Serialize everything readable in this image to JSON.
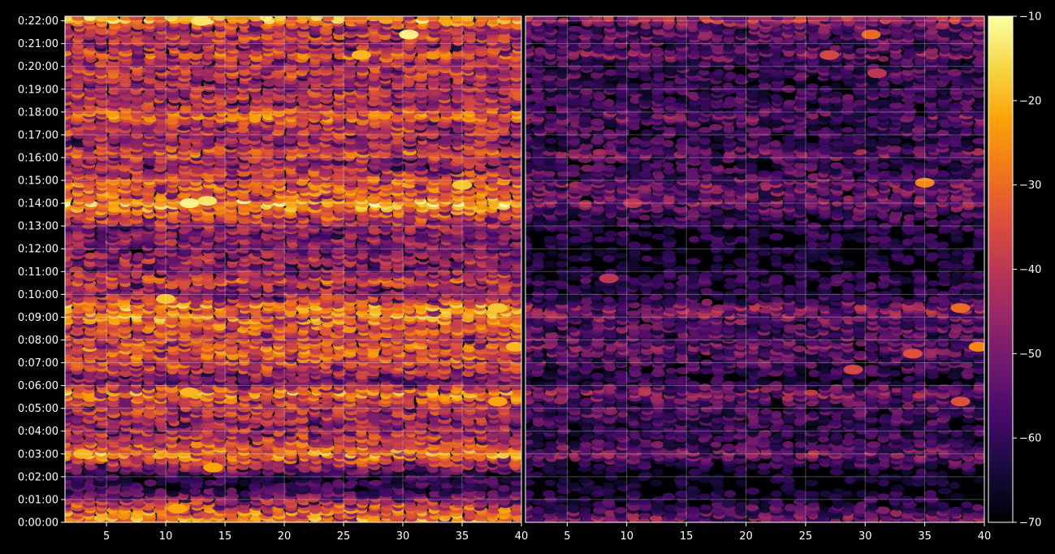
{
  "chart_data": {
    "type": "heatmap",
    "title": "",
    "colormap": "inferno",
    "background": "#000000",
    "grid": true,
    "panels": [
      {
        "name": "left",
        "x_ticks": [
          "5",
          "10",
          "15",
          "20",
          "25",
          "30",
          "35",
          "40"
        ],
        "x_tick_values": [
          5,
          10,
          15,
          20,
          25,
          30,
          35,
          40
        ],
        "x_range": [
          1.5,
          40
        ]
      },
      {
        "name": "right",
        "x_ticks": [
          "5",
          "10",
          "15",
          "20",
          "25",
          "30",
          "35",
          "40"
        ],
        "x_tick_values": [
          5,
          10,
          15,
          20,
          25,
          30,
          35,
          40
        ],
        "x_range": [
          1.5,
          40
        ]
      }
    ],
    "y_ticks": [
      "0:00:00",
      "0:01:00",
      "0:02:00",
      "0:03:00",
      "0:04:00",
      "0:05:00",
      "0:06:00",
      "0:07:00",
      "0:08:00",
      "0:09:00",
      "0:10:00",
      "0:11:00",
      "0:12:00",
      "0:13:00",
      "0:14:00",
      "0:15:00",
      "0:16:00",
      "0:17:00",
      "0:18:00",
      "0:19:00",
      "0:20:00",
      "0:21:00",
      "0:22:00"
    ],
    "y_range_minutes": [
      0,
      22.2
    ],
    "colorbar": {
      "ticks": [
        "−10",
        "−20",
        "−30",
        "−40",
        "−50",
        "−60",
        "−70"
      ],
      "tick_values": [
        -10,
        -20,
        -30,
        -40,
        -50,
        -60,
        -70
      ],
      "range": [
        -70,
        -10
      ]
    },
    "row_profile": {
      "minutes": [
        0.2,
        0.5,
        0.8,
        1.1,
        1.5,
        2.1,
        2.5,
        2.8,
        3.0,
        3.5,
        4.3,
        4.8,
        5.2,
        5.7,
        6.2,
        6.7,
        7.2,
        7.7,
        8.0,
        8.7,
        9.0,
        9.5,
        9.8,
        10.2,
        10.6,
        11.2,
        11.5,
        12.0,
        12.3,
        12.6,
        13.2,
        13.6,
        14.0,
        14.3,
        14.8,
        15.2,
        15.8,
        16.2,
        16.5,
        16.7,
        17.2,
        17.5,
        17.8,
        18.3,
        18.7,
        19.2,
        19.7,
        20.2,
        20.5,
        20.9,
        21.3,
        21.7,
        22.0
      ],
      "left_level": [
        -26,
        -30,
        -36,
        -48,
        -62,
        -62,
        -42,
        -32,
        -22,
        -36,
        -44,
        -40,
        -38,
        -24,
        -52,
        -38,
        -32,
        -30,
        -38,
        -28,
        -26,
        -24,
        -38,
        -46,
        -34,
        -50,
        -42,
        -52,
        -46,
        -50,
        -40,
        -30,
        -18,
        -32,
        -30,
        -34,
        -46,
        -30,
        -40,
        -44,
        -38,
        -40,
        -26,
        -42,
        -38,
        -44,
        -36,
        -44,
        -30,
        -44,
        -36,
        -42,
        -22
      ],
      "right_level": [
        -50,
        -56,
        -62,
        -64,
        -70,
        -70,
        -62,
        -56,
        -48,
        -60,
        -62,
        -56,
        -58,
        -46,
        -66,
        -60,
        -56,
        -52,
        -56,
        -54,
        -50,
        -48,
        -62,
        -66,
        -62,
        -70,
        -66,
        -70,
        -64,
        -66,
        -62,
        -58,
        -50,
        -54,
        -50,
        -56,
        -62,
        -50,
        -60,
        -62,
        -58,
        -60,
        -50,
        -62,
        -60,
        -62,
        -58,
        -62,
        -48,
        -60,
        -52,
        -56,
        -44
      ]
    },
    "hotspots": {
      "left": [
        {
          "x": 12,
          "minute": 14.0,
          "value": -12
        },
        {
          "x": 13.5,
          "minute": 14.1,
          "value": -14
        },
        {
          "x": 30.5,
          "minute": 21.4,
          "value": -12
        },
        {
          "x": 35,
          "minute": 14.8,
          "value": -18
        },
        {
          "x": 38,
          "minute": 9.4,
          "value": -18
        },
        {
          "x": 39.5,
          "minute": 7.7,
          "value": -20
        },
        {
          "x": 11,
          "minute": 0.6,
          "value": -22
        },
        {
          "x": 12,
          "minute": 5.7,
          "value": -20
        },
        {
          "x": 3,
          "minute": 3.0,
          "value": -20
        },
        {
          "x": 14,
          "minute": 2.4,
          "value": -22
        },
        {
          "x": 26.5,
          "minute": 20.5,
          "value": -20
        },
        {
          "x": 13,
          "minute": 22.0,
          "value": -14
        },
        {
          "x": 10,
          "minute": 9.8,
          "value": -18
        },
        {
          "x": 38,
          "minute": 5.3,
          "value": -22
        }
      ],
      "right": [
        {
          "x": 35,
          "minute": 14.9,
          "value": -26
        },
        {
          "x": 38,
          "minute": 9.4,
          "value": -30
        },
        {
          "x": 39.5,
          "minute": 7.7,
          "value": -26
        },
        {
          "x": 30.5,
          "minute": 21.4,
          "value": -30
        },
        {
          "x": 34,
          "minute": 7.4,
          "value": -34
        },
        {
          "x": 29,
          "minute": 6.7,
          "value": -36
        },
        {
          "x": 38,
          "minute": 5.3,
          "value": -34
        },
        {
          "x": 27,
          "minute": 20.5,
          "value": -36
        },
        {
          "x": 10.5,
          "minute": 14.0,
          "value": -40
        },
        {
          "x": 8.5,
          "minute": 10.7,
          "value": -40
        },
        {
          "x": 31,
          "minute": 19.7,
          "value": -40
        }
      ]
    }
  }
}
